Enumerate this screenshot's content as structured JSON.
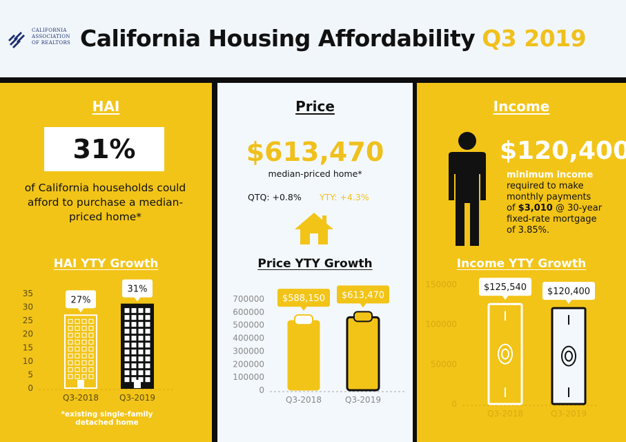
{
  "header": {
    "org_line1": "CALIFORNIA",
    "org_line2": "ASSOCIATION",
    "org_line3": "OF REALTORS",
    "title": "California Housing Affordability",
    "quarter": "Q3 2019"
  },
  "hai": {
    "heading": "HAI",
    "value": "31%",
    "description": "of California households could afford to purchase a median-priced home*",
    "footnote": "*existing single-family detached home"
  },
  "price": {
    "heading": "Price",
    "value": "$613,470",
    "label": "median-priced home*",
    "qtq": "QTQ: +0.8%",
    "yty": "YTY: +4.3%"
  },
  "income": {
    "heading": "Income",
    "value": "$120,400",
    "line1": "minimum income",
    "line2": "required to make",
    "line3": "monthly payments",
    "line4_pre": "of ",
    "line4_bold": "$3,010",
    "line4_post": " @ 30-year",
    "line5": "fixed-rate mortgage",
    "line6": "of 3.85%."
  },
  "colors": {
    "accent": "#f2c418",
    "dark": "#0d0d0d",
    "light": "#f3f8fc"
  },
  "chart_data": [
    {
      "type": "bar",
      "title": "HAI YTY Growth",
      "categories": [
        "Q3-2018",
        "Q3-2019"
      ],
      "values": [
        27,
        31
      ],
      "data_labels": [
        "27%",
        "31%"
      ],
      "yticks": [
        0,
        5,
        10,
        15,
        20,
        25,
        30,
        35
      ],
      "ylim": [
        0,
        35
      ]
    },
    {
      "type": "bar",
      "title": "Price YTY Growth",
      "categories": [
        "Q3-2018",
        "Q3-2019"
      ],
      "values": [
        588150,
        613470
      ],
      "data_labels": [
        "$588,150",
        "$613,470"
      ],
      "yticks": [
        0,
        100000,
        200000,
        300000,
        400000,
        500000,
        600000,
        700000
      ],
      "ylim": [
        0,
        700000
      ]
    },
    {
      "type": "bar",
      "title": "Income YTY Growth",
      "categories": [
        "Q3-2018",
        "Q3-2019"
      ],
      "values": [
        125540,
        120400
      ],
      "data_labels": [
        "$125,540",
        "$120,400"
      ],
      "yticks": [
        0,
        50000,
        100000,
        150000
      ],
      "ylim": [
        0,
        150000
      ]
    }
  ]
}
